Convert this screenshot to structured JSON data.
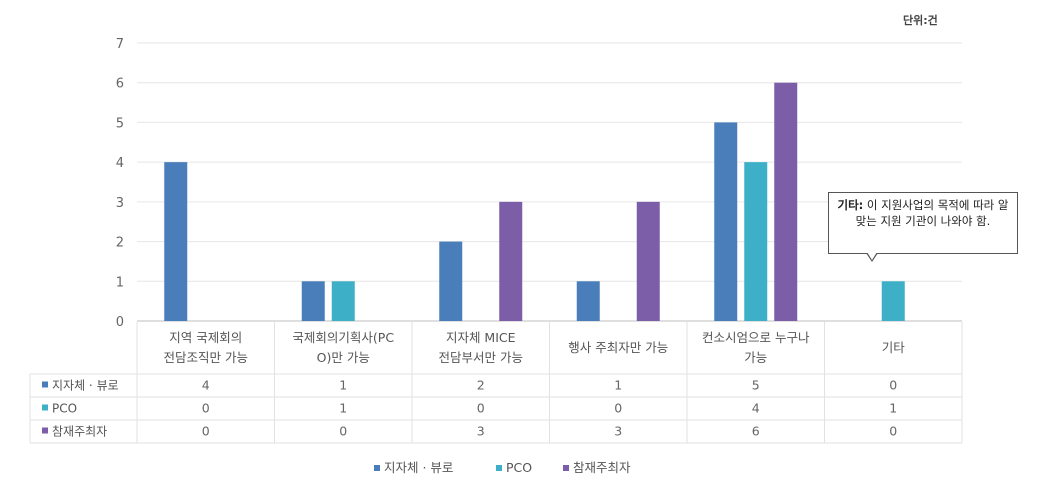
{
  "unit_label": "단위:건",
  "callout": {
    "bold": "기타:",
    "text": " 이 지원사업의 목적에 따라 알맞는 지원 기관이 나와야 함."
  },
  "chart_data": {
    "type": "bar",
    "categories": [
      [
        "지역 국제회의",
        "전담조직만 가능"
      ],
      [
        "국제회의기획사(PC",
        "O)만 가능"
      ],
      [
        "지자체 MICE",
        "전담부서만 가능"
      ],
      [
        "행사 주최자만 가능"
      ],
      [
        "컨소시엄으로 누구나",
        "가능"
      ],
      [
        "기타"
      ]
    ],
    "series": [
      {
        "name": "지자체 · 뷰로",
        "color": "#4a7ebb",
        "values": [
          4,
          1,
          2,
          1,
          5,
          0
        ]
      },
      {
        "name": "PCO",
        "color": "#3db0c7",
        "values": [
          0,
          1,
          0,
          0,
          4,
          1
        ]
      },
      {
        "name": "참재주최자",
        "color": "#7b5ea7",
        "values": [
          0,
          0,
          3,
          3,
          6,
          0
        ]
      }
    ],
    "ylim": [
      0,
      7
    ],
    "yticks": [
      0,
      1,
      2,
      3,
      4,
      5,
      6,
      7
    ],
    "grid": true,
    "legend": "bottom",
    "data_table": true
  }
}
